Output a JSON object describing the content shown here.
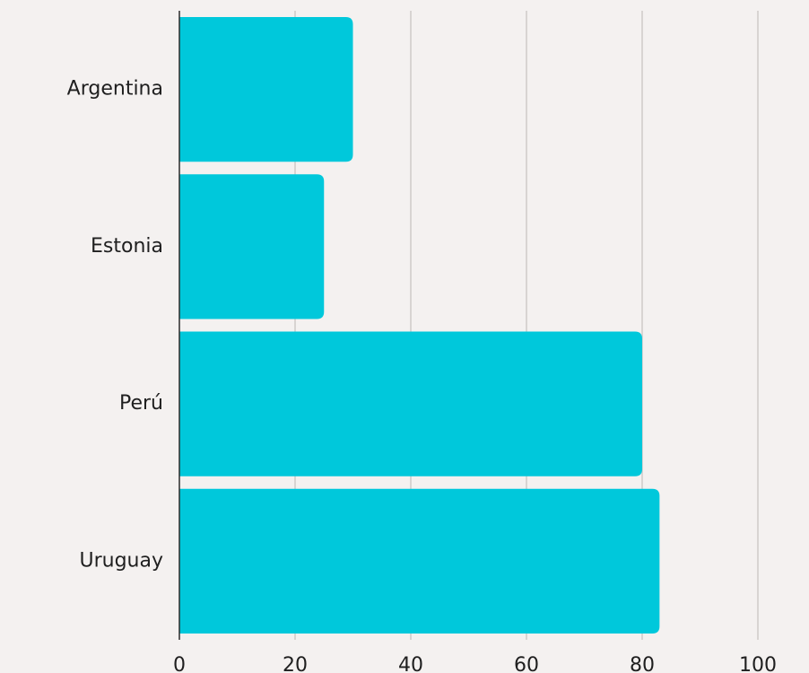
{
  "chart_data": {
    "type": "bar",
    "orientation": "horizontal",
    "categories": [
      "Argentina",
      "Estonia",
      "Perú",
      "Uruguay"
    ],
    "values": [
      30,
      25,
      80,
      83
    ],
    "xlim": [
      0,
      100
    ],
    "xticks": [
      0,
      20,
      40,
      60,
      80,
      100
    ],
    "grid": true,
    "bar_color": "#00c8db",
    "grid_color": "#cfcac8",
    "axis_color": "#2b2b2b",
    "background": "#f4f1f0"
  }
}
